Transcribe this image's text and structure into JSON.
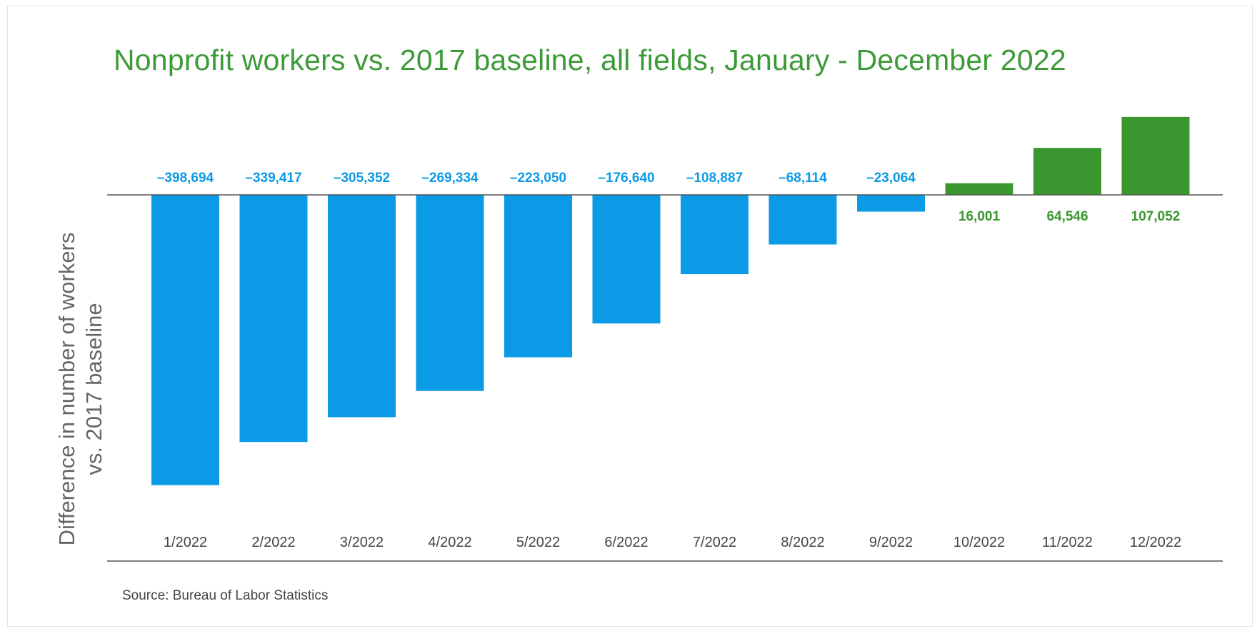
{
  "title": "Nonprofit workers vs. 2017 baseline, all fields, January - December 2022",
  "ylabel_lines": [
    "Difference in number of workers",
    "vs. 2017 baseline"
  ],
  "source": "Source: Bureau of Labor Statistics",
  "colors": {
    "negative": "#0b9ae6",
    "positive": "#3a962f",
    "title": "#3c9a37"
  },
  "chart_data": {
    "type": "bar",
    "title": "Nonprofit workers vs. 2017 baseline, all fields, January - December 2022",
    "xlabel": "",
    "ylabel": "Difference in number of workers vs. 2017 baseline",
    "categories": [
      "1/2022",
      "2/2022",
      "3/2022",
      "4/2022",
      "5/2022",
      "6/2022",
      "7/2022",
      "8/2022",
      "9/2022",
      "10/2022",
      "11/2022",
      "12/2022"
    ],
    "values": [
      -398694,
      -339417,
      -305352,
      -269334,
      -223050,
      -176640,
      -108887,
      -68114,
      -23064,
      16001,
      64546,
      107052
    ],
    "labels": [
      "–398,694",
      "–339,417",
      "–305,352",
      "–269,334",
      "–223,050",
      "–176,640",
      "–108,887",
      "–68,114",
      "–23,064",
      "16,001",
      "64,546",
      "107,052"
    ],
    "ylim": [
      -400000,
      110000
    ],
    "grid": false,
    "legend": "none"
  }
}
